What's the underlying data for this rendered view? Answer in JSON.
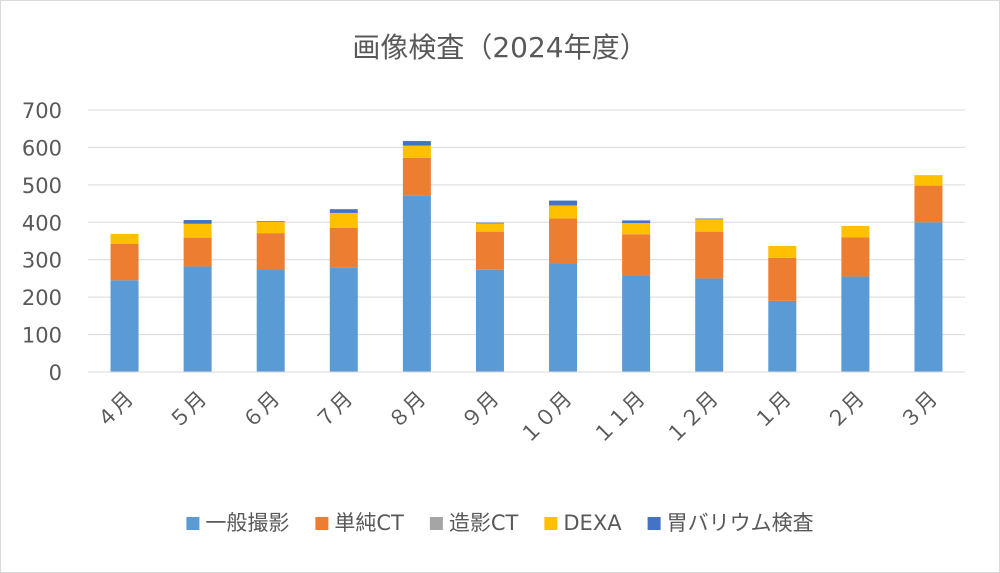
{
  "chart_data": {
    "type": "bar",
    "stacked": true,
    "title": "画像検査（2024年度）",
    "xlabel": "",
    "ylabel": "",
    "ylim": [
      0,
      700
    ],
    "yticks": [
      0,
      100,
      200,
      300,
      400,
      500,
      600,
      700
    ],
    "grid": true,
    "legend_position": "bottom",
    "categories": [
      "４月",
      "５月",
      "６月",
      "７月",
      "８月",
      "９月",
      "１０月",
      "１１月",
      "１２月",
      "１月",
      "２月",
      "３月"
    ],
    "series": [
      {
        "name": "一般撮影",
        "color": "#5b9bd5",
        "values": [
          245,
          282,
          275,
          280,
          472,
          273,
          290,
          258,
          250,
          190,
          255,
          400
        ]
      },
      {
        "name": "単純CT",
        "color": "#ed7d31",
        "values": [
          97,
          77,
          96,
          105,
          100,
          102,
          120,
          110,
          125,
          115,
          105,
          98
        ]
      },
      {
        "name": "造影CT",
        "color": "#a5a5a5",
        "values": [
          0,
          0,
          0,
          0,
          0,
          0,
          0,
          0,
          0,
          0,
          0,
          0
        ]
      },
      {
        "name": "DEXA",
        "color": "#ffc000",
        "values": [
          27,
          37,
          30,
          40,
          33,
          22,
          35,
          30,
          33,
          32,
          30,
          28
        ]
      },
      {
        "name": "胃バリウム検査",
        "color": "#4472c4",
        "values": [
          0,
          10,
          2,
          10,
          12,
          2,
          13,
          7,
          2,
          0,
          0,
          0
        ]
      }
    ]
  }
}
